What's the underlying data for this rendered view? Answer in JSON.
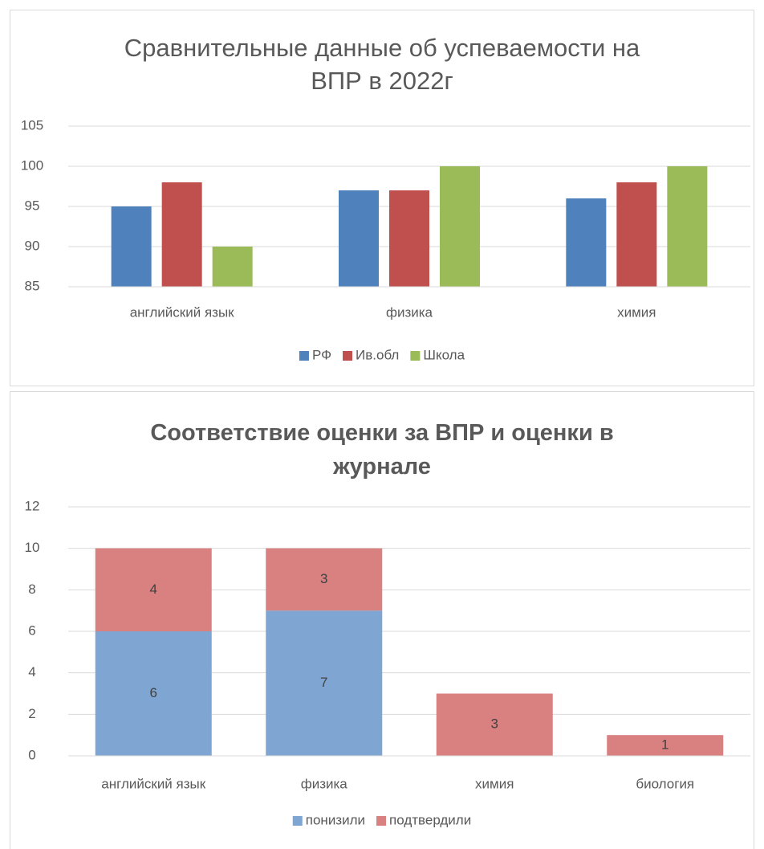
{
  "chart_data": [
    {
      "type": "bar",
      "title": "Сравнительные данные об успеваемости на ВПР в 2022г",
      "categories": [
        "английский язык",
        "физика",
        "химия"
      ],
      "series": [
        {
          "name": "РФ",
          "color": "#4f81bd",
          "values": [
            95,
            97,
            96
          ]
        },
        {
          "name": "Ив.обл",
          "color": "#c0504d",
          "values": [
            98,
            97,
            98
          ]
        },
        {
          "name": "Школа",
          "color": "#9bbb59",
          "values": [
            90,
            100,
            100
          ]
        }
      ],
      "ylim": [
        85,
        105
      ],
      "yticks": [
        85,
        90,
        95,
        100,
        105
      ],
      "grid": true,
      "legend": "bottom"
    },
    {
      "type": "stacked_bar",
      "title": "Соответствие оценки за ВПР и оценки в журнале",
      "categories": [
        "английский язык",
        "физика",
        "химия",
        "биология"
      ],
      "series": [
        {
          "name": "понизили",
          "color": "#7fa6d3",
          "values": [
            6,
            7,
            null,
            0
          ]
        },
        {
          "name": "подтвердили",
          "color": "#d98080",
          "values": [
            4,
            3,
            3,
            1
          ]
        }
      ],
      "ylim": [
        0,
        12
      ],
      "yticks": [
        0,
        2,
        4,
        6,
        8,
        10,
        12
      ],
      "grid": true,
      "legend": "bottom",
      "data_labels": true
    }
  ]
}
